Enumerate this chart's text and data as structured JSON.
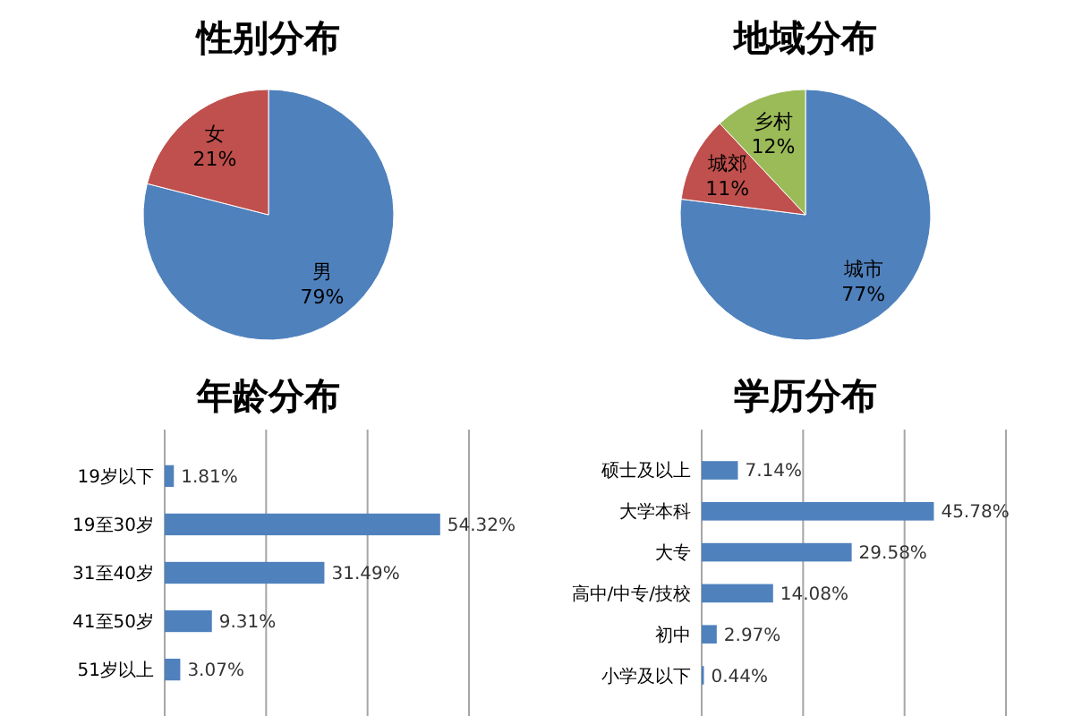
{
  "chart_data": [
    {
      "type": "pie",
      "title": "性别分布",
      "categories": [
        "男",
        "女"
      ],
      "values": [
        79,
        21
      ],
      "colors": [
        "#4f81bd",
        "#c0504d"
      ],
      "value_labels": [
        "79%",
        "21%"
      ]
    },
    {
      "type": "pie",
      "title": "地域分布",
      "categories": [
        "城市",
        "城郊",
        "乡村"
      ],
      "values": [
        77,
        11,
        12
      ],
      "colors": [
        "#4f81bd",
        "#c0504d",
        "#9bbb59"
      ],
      "value_labels": [
        "77%",
        "11%",
        "12%"
      ]
    },
    {
      "type": "bar",
      "orientation": "horizontal",
      "title": "年龄分布",
      "categories": [
        "19岁以下",
        "19至30岁",
        "31至40岁",
        "41至50岁",
        "51岁以上"
      ],
      "values": [
        1.81,
        54.32,
        31.49,
        9.31,
        3.07
      ],
      "color": "#4f81bd",
      "value_labels": [
        "1.81%",
        "54.32%",
        "31.49%",
        "9.31%",
        "3.07%"
      ],
      "xlim": [
        0,
        60
      ],
      "xticks": [
        {
          "value": 0,
          "label": null
        },
        {
          "value": 20,
          "label": null
        },
        {
          "value": 40,
          "label": null
        },
        {
          "value": 60,
          "label": null
        }
      ],
      "grid": "x",
      "tick_labels": "y"
    },
    {
      "type": "bar",
      "orientation": "horizontal",
      "title": "学历分布",
      "categories": [
        "硕士及以上",
        "大学本科",
        "大专",
        "高中/中专/技校",
        "初中",
        "小学及以下"
      ],
      "values": [
        7.14,
        45.78,
        29.58,
        14.08,
        2.97,
        0.44
      ],
      "color": "#4f81bd",
      "value_labels": [
        "7.14%",
        "45.78%",
        "29.58%",
        "14.08%",
        "2.97%",
        "0.44%"
      ],
      "xlim": [
        0,
        60
      ],
      "xticks": [
        {
          "value": 0,
          "label": null
        },
        {
          "value": 20,
          "label": null
        },
        {
          "value": 40,
          "label": null
        },
        {
          "value": 60,
          "label": null
        }
      ],
      "grid": "x",
      "tick_labels": "y"
    }
  ]
}
